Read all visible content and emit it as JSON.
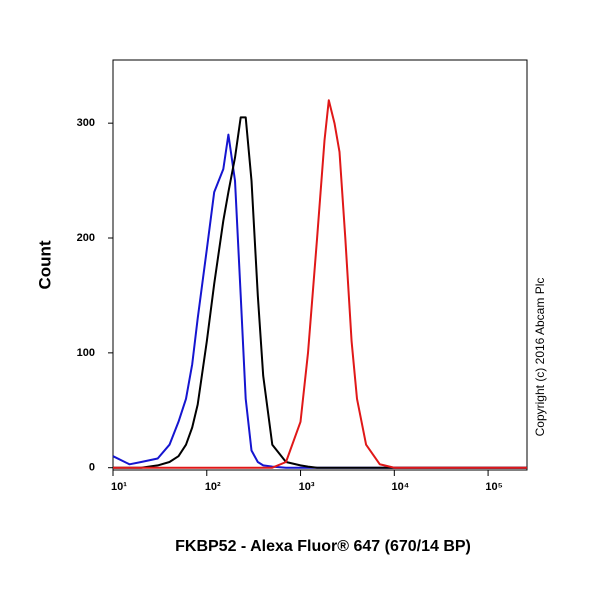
{
  "chart_data": {
    "type": "line",
    "x_label": "FKBP52 - Alexa Fluor® 647 (670/14 BP)",
    "y_label": "Count",
    "annotation": "Copyright (c) 2016 Abcam Plc",
    "log_x": true,
    "xlim": [
      10,
      260000
    ],
    "xticks": [
      {
        "value": 10,
        "label": "10¹"
      },
      {
        "value": 100,
        "label": "10²"
      },
      {
        "value": 1000,
        "label": "10³"
      },
      {
        "value": 10000,
        "label": "10⁴"
      },
      {
        "value": 100000,
        "label": "10⁵"
      }
    ],
    "ylim": [
      -2,
      355
    ],
    "yticks": [
      0,
      100,
      200,
      300
    ],
    "x": [
      10,
      15,
      20,
      30,
      40,
      50,
      60,
      70,
      80,
      100,
      120,
      150,
      170,
      200,
      230,
      260,
      300,
      350,
      400,
      500,
      700,
      1000,
      1200,
      1500,
      1800,
      2000,
      2300,
      2600,
      3000,
      3500,
      4000,
      5000,
      7000,
      10000,
      100000,
      260000
    ],
    "series": [
      {
        "color": "#1515d0",
        "values": [
          10,
          3,
          5,
          8,
          20,
          40,
          60,
          90,
          130,
          190,
          240,
          260,
          290,
          250,
          150,
          60,
          15,
          5,
          2,
          1,
          0,
          0,
          0,
          0,
          0,
          0,
          0,
          0,
          0,
          0,
          0,
          0,
          0,
          0,
          0,
          0
        ]
      },
      {
        "color": "#000000",
        "values": [
          0,
          0,
          0,
          2,
          5,
          10,
          20,
          35,
          55,
          110,
          160,
          215,
          240,
          270,
          305,
          305,
          250,
          150,
          80,
          20,
          5,
          2,
          1,
          0,
          0,
          0,
          0,
          0,
          0,
          0,
          0,
          0,
          0,
          0,
          0,
          0
        ]
      },
      {
        "color": "#e01818",
        "values": [
          0,
          0,
          0,
          0,
          0,
          0,
          0,
          0,
          0,
          0,
          0,
          0,
          0,
          0,
          0,
          0,
          0,
          0,
          0,
          0,
          5,
          40,
          100,
          200,
          285,
          320,
          300,
          275,
          200,
          110,
          60,
          20,
          3,
          0,
          0,
          0
        ]
      }
    ]
  }
}
